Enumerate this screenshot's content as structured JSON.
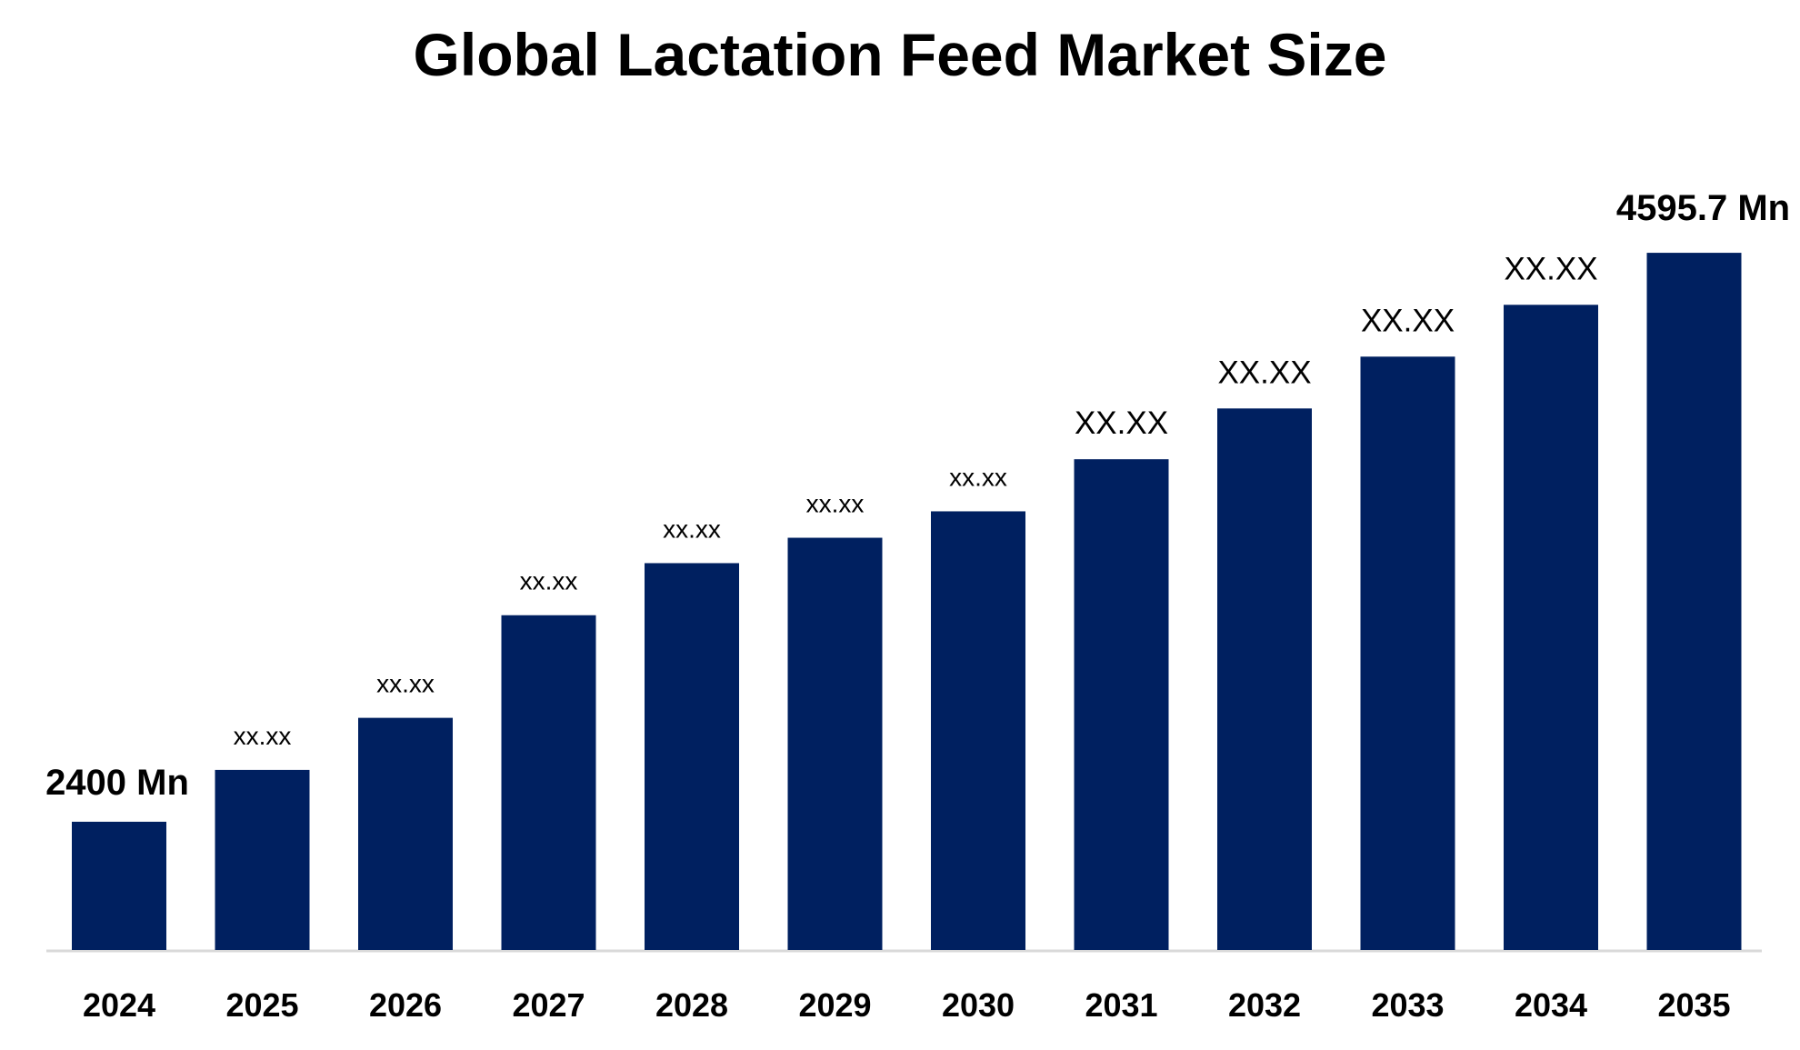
{
  "chart_data": {
    "type": "bar",
    "title": "Global Lactation Feed Market Size",
    "xlabel": "",
    "ylabel": "",
    "categories": [
      "2024",
      "2025",
      "2026",
      "2027",
      "2028",
      "2029",
      "2030",
      "2031",
      "2032",
      "2033",
      "2034",
      "2035"
    ],
    "values": [
      2400,
      2600,
      2801,
      3197,
      3398,
      3496,
      3598,
      3799,
      3995,
      4195,
      4395,
      4595.7
    ],
    "data_labels": [
      "2400 Mn",
      "xx.xx",
      "xx.xx",
      "xx.xx",
      "xx.xx",
      "xx.xx",
      "xx.xx",
      "XX.XX",
      "XX.XX",
      "XX.XX",
      "XX.XX",
      "4595.7 Mn"
    ],
    "ylim": [
      1905,
      4596
    ],
    "grid": false,
    "bar_color": "#002060",
    "axis_color": "#d9d9d9"
  }
}
